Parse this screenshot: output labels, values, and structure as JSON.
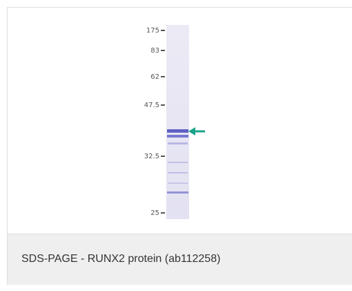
{
  "image": {
    "marker_labels": [
      "175",
      "83",
      "62",
      "47.5",
      "32.5",
      "25"
    ]
  },
  "caption": "SDS-PAGE - RUNX2 protein (ab112258)"
}
